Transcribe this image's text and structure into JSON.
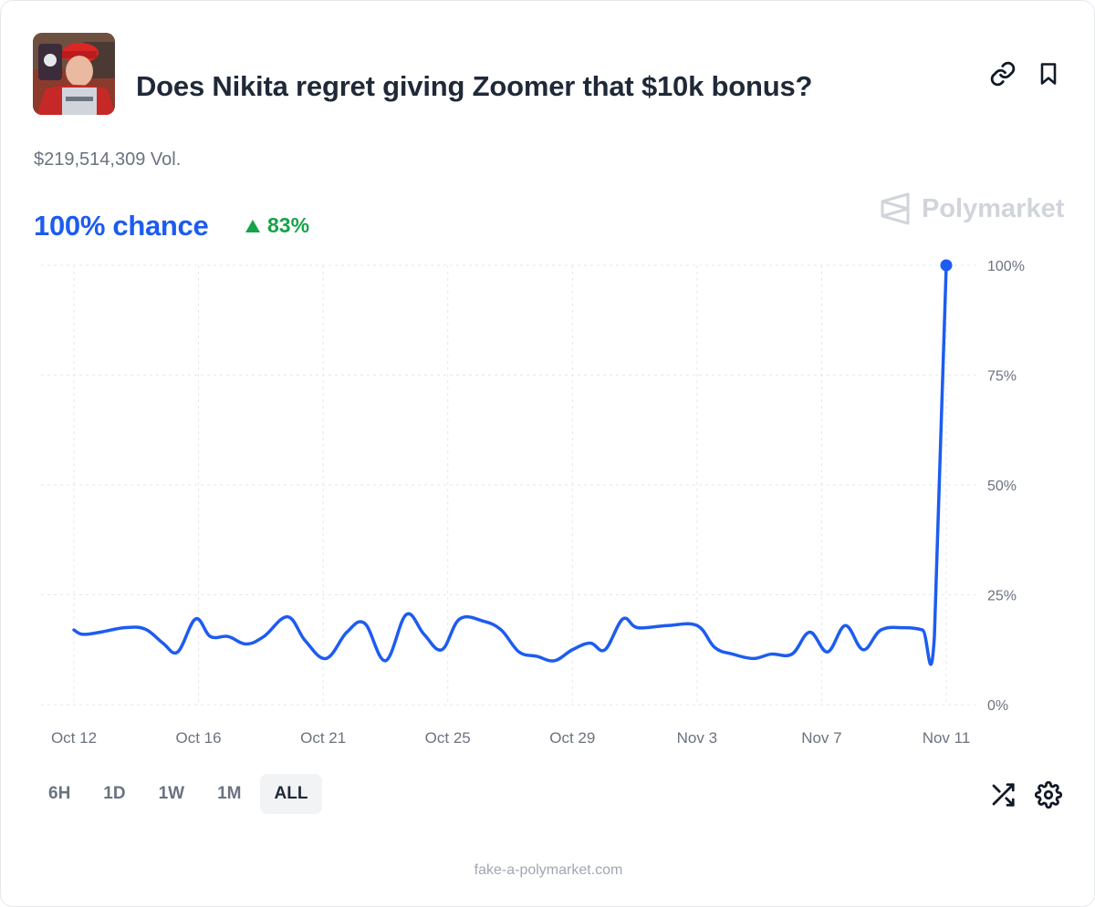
{
  "market": {
    "title": "Does Nikita regret giving Zoomer that $10k bonus?",
    "volume": "$219,514,309 Vol.",
    "chance": "100% chance",
    "delta": "83%",
    "brand": "Polymarket"
  },
  "time_ranges": [
    "6H",
    "1D",
    "1W",
    "1M",
    "ALL"
  ],
  "active_range": "ALL",
  "footer": "fake-a-polymarket.com",
  "colors": {
    "line": "#1d5cf0",
    "positive": "#16a34a",
    "grid": "#e5e7eb",
    "brand": "#d1d5db"
  },
  "icons": [
    "link-icon",
    "bookmark-icon",
    "shuffle-icon",
    "gear-icon",
    "triangle-up-icon",
    "polymarket-logo-icon"
  ],
  "chart_data": {
    "type": "line",
    "x_tick_labels": [
      "Oct 12",
      "Oct 16",
      "Oct 21",
      "Oct 25",
      "Oct 29",
      "Nov 3",
      "Nov 7",
      "Nov 11"
    ],
    "y_tick_labels": [
      "100%",
      "75%",
      "50%",
      "25%",
      "0%"
    ],
    "ylim": [
      0,
      100
    ],
    "grid": true,
    "series": [
      {
        "values": [
          [
            0.0,
            17
          ],
          [
            0.3,
            16
          ],
          [
            0.9,
            16.5
          ],
          [
            1.7,
            17.5
          ],
          [
            2.4,
            17.2
          ],
          [
            3.0,
            14
          ],
          [
            3.5,
            12
          ],
          [
            4.1,
            19.5
          ],
          [
            4.6,
            15.5
          ],
          [
            5.2,
            15.5
          ],
          [
            5.8,
            13.8
          ],
          [
            6.4,
            15.5
          ],
          [
            7.2,
            20
          ],
          [
            7.8,
            14.5
          ],
          [
            8.5,
            10.5
          ],
          [
            9.2,
            16.5
          ],
          [
            9.8,
            18.5
          ],
          [
            10.5,
            10
          ],
          [
            11.2,
            20.5
          ],
          [
            11.8,
            16
          ],
          [
            12.4,
            12.5
          ],
          [
            13.0,
            19.5
          ],
          [
            13.8,
            19
          ],
          [
            14.4,
            17
          ],
          [
            15.0,
            12
          ],
          [
            15.6,
            11
          ],
          [
            16.2,
            10
          ],
          [
            16.8,
            12.5
          ],
          [
            17.4,
            14
          ],
          [
            17.9,
            12.5
          ],
          [
            18.5,
            19.5
          ],
          [
            19.0,
            17.5
          ],
          [
            20.0,
            18
          ],
          [
            21.0,
            18
          ],
          [
            21.6,
            13
          ],
          [
            22.2,
            11.5
          ],
          [
            22.9,
            10.5
          ],
          [
            23.5,
            11.5
          ],
          [
            24.2,
            11.5
          ],
          [
            24.8,
            16.5
          ],
          [
            25.4,
            12
          ],
          [
            26.0,
            18
          ],
          [
            26.6,
            12.5
          ],
          [
            27.2,
            17
          ],
          [
            28.0,
            17.5
          ],
          [
            28.6,
            17
          ],
          [
            29.0,
            15.5
          ],
          [
            29.4,
            100
          ]
        ]
      }
    ]
  }
}
